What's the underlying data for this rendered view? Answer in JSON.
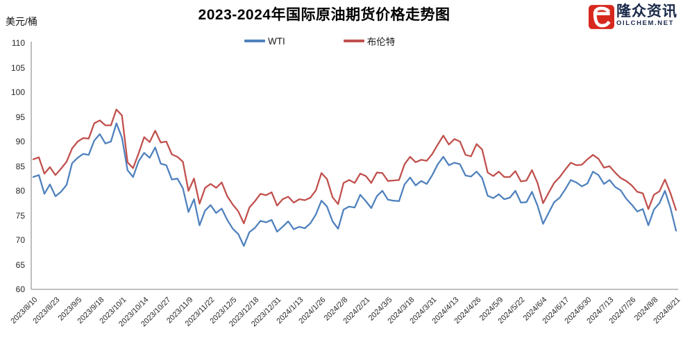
{
  "logo": {
    "brand_cn": "隆众资讯",
    "brand_site": "OILCHEM.NET",
    "accent_color": "#D7281E",
    "text_color": "#1B2A4A"
  },
  "chart_data": {
    "type": "line",
    "title": "2023-2024年国际原油期货价格走势图",
    "xlabel": "",
    "ylabel": "美元/桶",
    "ylim": [
      60,
      110
    ],
    "y_ticks": [
      60,
      65,
      70,
      75,
      80,
      85,
      90,
      95,
      100,
      105,
      110
    ],
    "grid": false,
    "legend_position": "top",
    "axis_color": "#9a9a9a",
    "x_tick_every": 4,
    "sampling_note": "daily price series read off the plot as keyframes every ~3 days (4 points per 13-day tick interval), unit USD/barrel",
    "x_tick_labels": [
      "2023/8/10",
      "2023/8/23",
      "2023/9/5",
      "2023/9/18",
      "2023/10/1",
      "2023/10/14",
      "2023/10/27",
      "2023/11/9",
      "2023/11/22",
      "2023/12/5",
      "2023/12/18",
      "2023/12/31",
      "2024/1/13",
      "2024/1/26",
      "2024/2/8",
      "2024/2/21",
      "2024/3/5",
      "2024/3/18",
      "2024/3/31",
      "2024/4/13",
      "2024/4/26",
      "2024/5/9",
      "2024/5/22",
      "2024/6/4",
      "2024/6/17",
      "2024/6/30",
      "2024/7/13",
      "2024/7/26",
      "2024/8/8",
      "2024/8/21"
    ],
    "series": [
      {
        "name": "WTI",
        "color": "#4F81BD",
        "values": [
          82.8,
          83.2,
          79.4,
          81.3,
          78.9,
          79.8,
          81.2,
          85.6,
          86.7,
          87.5,
          87.3,
          90.2,
          91.5,
          89.6,
          90.0,
          93.7,
          90.8,
          84.2,
          82.8,
          86.0,
          87.7,
          86.7,
          88.8,
          85.5,
          85.2,
          82.3,
          82.5,
          80.5,
          75.7,
          78.3,
          73.0,
          76.0,
          77.1,
          75.5,
          76.4,
          74.1,
          72.3,
          71.2,
          68.8,
          71.6,
          72.5,
          73.9,
          73.6,
          74.1,
          71.7,
          72.7,
          73.8,
          72.2,
          72.7,
          72.4,
          73.4,
          75.2,
          78.0,
          76.8,
          73.8,
          72.3,
          76.2,
          76.8,
          76.6,
          79.2,
          77.9,
          76.5,
          78.9,
          80.0,
          78.2,
          78.0,
          77.9,
          81.3,
          82.7,
          81.1,
          82.0,
          81.4,
          83.2,
          85.4,
          86.9,
          85.2,
          85.7,
          85.4,
          83.1,
          82.9,
          83.9,
          82.6,
          79.0,
          78.5,
          79.3,
          78.3,
          78.6,
          80.0,
          77.6,
          77.7,
          79.8,
          77.0,
          73.3,
          75.5,
          77.7,
          78.6,
          80.3,
          82.2,
          81.7,
          80.9,
          81.5,
          83.9,
          83.2,
          81.4,
          82.2,
          80.8,
          80.1,
          78.4,
          77.2,
          75.8,
          76.3,
          73.0,
          76.2,
          77.5,
          80.0,
          76.5,
          71.9
        ]
      },
      {
        "name": "布伦特",
        "color": "#C0504D",
        "values": [
          86.4,
          86.8,
          83.5,
          84.8,
          83.2,
          84.5,
          85.9,
          88.6,
          90.0,
          90.7,
          90.6,
          93.7,
          94.3,
          93.3,
          93.3,
          96.5,
          95.3,
          85.8,
          84.6,
          87.6,
          90.9,
          89.9,
          92.2,
          89.8,
          90.0,
          87.4,
          86.9,
          85.9,
          80.0,
          82.5,
          77.4,
          80.6,
          81.4,
          80.6,
          81.7,
          78.9,
          77.2,
          75.8,
          73.4,
          76.6,
          77.9,
          79.4,
          79.1,
          79.7,
          77.0,
          78.3,
          78.8,
          77.6,
          78.3,
          78.1,
          78.6,
          80.1,
          83.6,
          82.4,
          78.7,
          77.3,
          81.6,
          82.2,
          81.6,
          83.5,
          83.0,
          81.6,
          83.7,
          83.6,
          82.0,
          82.1,
          82.2,
          85.4,
          86.9,
          85.8,
          86.3,
          86.1,
          87.5,
          89.4,
          91.2,
          89.4,
          90.5,
          90.0,
          87.3,
          87.0,
          89.5,
          88.4,
          83.7,
          83.0,
          83.9,
          82.8,
          82.8,
          84.0,
          81.9,
          82.1,
          84.2,
          81.6,
          77.5,
          79.6,
          81.6,
          82.8,
          84.3,
          85.7,
          85.2,
          85.3,
          86.4,
          87.3,
          86.5,
          84.7,
          85.0,
          83.7,
          82.6,
          82.0,
          81.1,
          79.8,
          79.5,
          76.3,
          79.2,
          79.9,
          82.3,
          79.5,
          76.1
        ]
      }
    ]
  }
}
